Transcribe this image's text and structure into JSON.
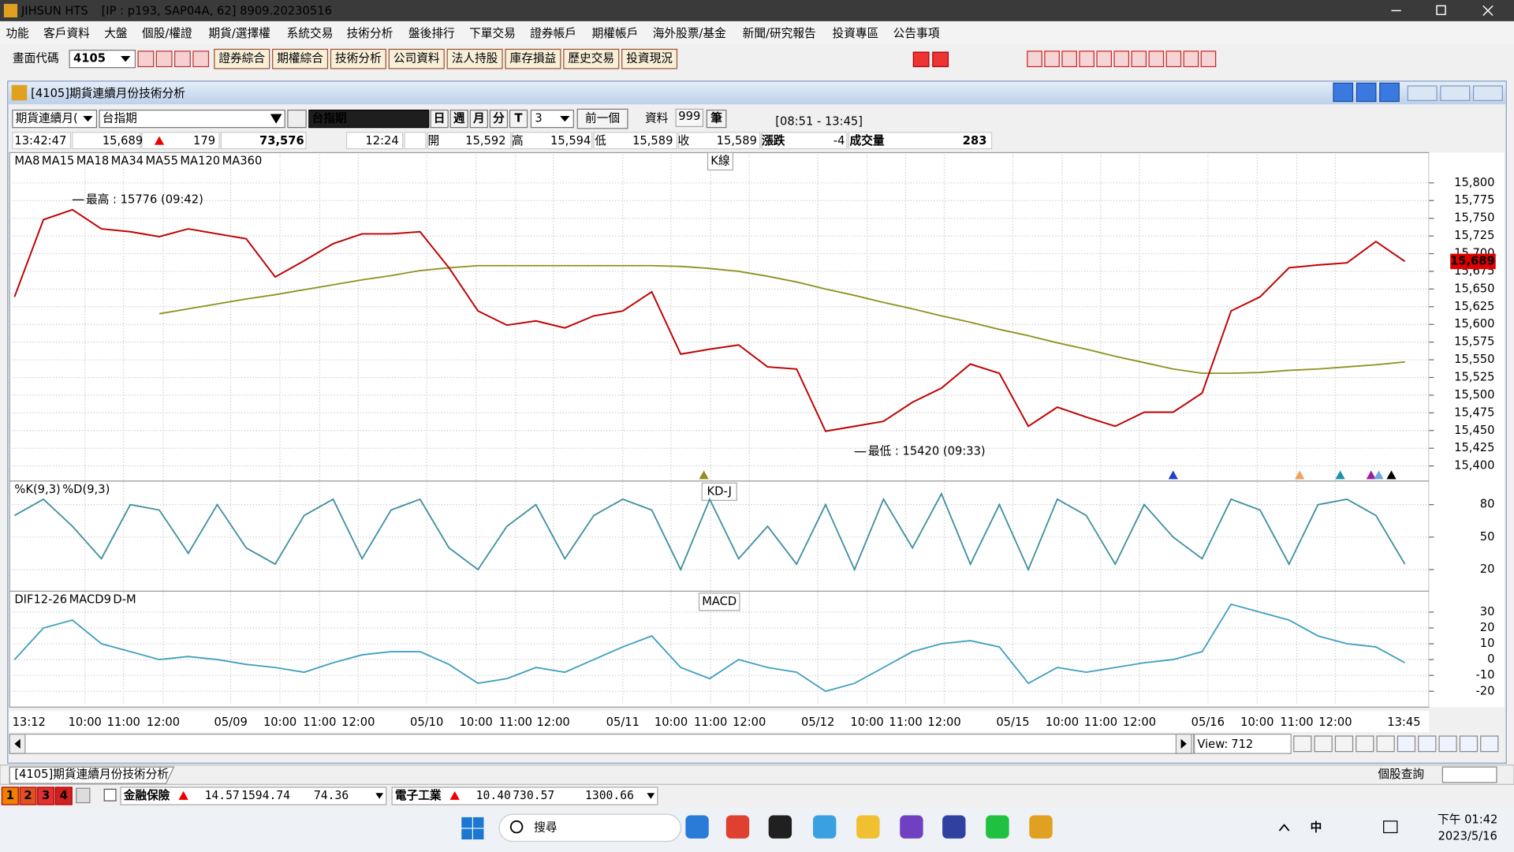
{
  "window": {
    "title": "JIHSUN HTS",
    "info": "[IP : p193, SAP04A, 62] 8909.20230516"
  },
  "menu": [
    "功能",
    "客戶資料",
    "大盤",
    "個股/權證",
    "期貨/選擇權",
    "系統交易",
    "技術分析",
    "盤後排行",
    "下單交易",
    "證券帳戶",
    "期權帳戶",
    "海外股票/基金",
    "新聞/研究報告",
    "投資專區",
    "公告事項"
  ],
  "toolbar": {
    "code_label": "畫面代碼",
    "code": "4105",
    "buttons": [
      "證券綜合",
      "期權綜合",
      "技術分析",
      "公司資料",
      "法人持股",
      "庫存損益",
      "歷史交易",
      "投資現況"
    ]
  },
  "panel": {
    "title": "[4105]期貨連續月份技術分析",
    "selector": "期貨連續月(",
    "symbol": "台指期",
    "symbol_field": "台指期",
    "periods": [
      "日",
      "週",
      "月",
      "分",
      "T"
    ],
    "interval": "3",
    "prev": "前一個",
    "data_label": "資料",
    "data_count": "999",
    "data_unit": "筆",
    "range": "[08:51 - 13:45]"
  },
  "quote": {
    "time": "13:42:47",
    "price": "15,689",
    "change": "179",
    "volume": "73,576",
    "last_time": "12:24",
    "open_label": "開",
    "open": "15,592",
    "high_label": "高",
    "high": "15,594",
    "low_label": "低",
    "low": "15,589",
    "close_label": "收",
    "close": "15,589",
    "diff_label": "漲跌",
    "diff": "-4",
    "vol_label": "成交量",
    "vol": "283"
  },
  "chart_data": [
    {
      "type": "line",
      "label": "K線",
      "color": "#c00000",
      "values": [
        15639,
        15748,
        15762,
        15735,
        15731,
        15724,
        15735,
        15728,
        15721,
        15667,
        15690,
        15714,
        15728,
        15728,
        15731,
        15680,
        15619,
        15599,
        15605,
        15595,
        15612,
        15619,
        15646,
        15558,
        15565,
        15571,
        15540,
        15537,
        15449,
        15456,
        15463,
        15490,
        15510,
        15544,
        15531,
        15456,
        15483,
        15469,
        15456,
        15476,
        15476,
        15503,
        15619,
        15639,
        15680,
        15684,
        15687,
        15717,
        15689
      ],
      "legend": [
        {
          "name": "MA8",
          "color": "#000000"
        },
        {
          "name": "MA15",
          "color": "#6fa8dc"
        },
        {
          "name": "MA18",
          "color": "#a020a0"
        },
        {
          "name": "MA34",
          "color": "#2090b0"
        },
        {
          "name": "MA55",
          "color": "#f0a060"
        },
        {
          "name": "MA120",
          "color": "#1010c0"
        }
      ],
      "series": [
        {
          "name": "MA360",
          "color": "#909020",
          "values": [
            null,
            null,
            null,
            null,
            null,
            15615,
            15622,
            15629,
            15636,
            15642,
            15649,
            15656,
            15663,
            15669,
            15676,
            15680,
            15683,
            15683,
            15683,
            15683,
            15683,
            15683,
            15683,
            15682,
            15679,
            15675,
            15668,
            15660,
            15650,
            15641,
            15631,
            15622,
            15612,
            15603,
            15593,
            15584,
            15574,
            15565,
            15555,
            15546,
            15537,
            15531,
            15531,
            15532,
            15535,
            15537,
            15540,
            15543,
            15547
          ]
        }
      ],
      "annotations": [
        {
          "text": "最高 : 15776 (09:42)",
          "x": 2,
          "y": 15776
        },
        {
          "text": "最低 : 15420 (09:33)",
          "x": 29,
          "y": 15420
        }
      ],
      "last": {
        "value": 15689,
        "label": "15,689"
      },
      "ylim": [
        15380,
        15840
      ],
      "yticks": [
        {
          "value": 15400,
          "label": "15,400"
        },
        {
          "value": 15425,
          "label": "15,425"
        },
        {
          "value": 15450,
          "label": "15,450"
        },
        {
          "value": 15475,
          "label": "15,475"
        },
        {
          "value": 15500,
          "label": "15,500"
        },
        {
          "value": 15525,
          "label": "15,525"
        },
        {
          "value": 15550,
          "label": "15,550"
        },
        {
          "value": 15575,
          "label": "15,575"
        },
        {
          "value": 15600,
          "label": "15,600"
        },
        {
          "value": 15625,
          "label": "15,625"
        },
        {
          "value": 15650,
          "label": "15,650"
        },
        {
          "value": 15675,
          "label": "15,675"
        },
        {
          "value": 15700,
          "label": "15,700"
        },
        {
          "value": 15725,
          "label": "15,725"
        },
        {
          "value": 15750,
          "label": "15,750"
        },
        {
          "value": 15775,
          "label": "15,775"
        },
        {
          "value": 15800,
          "label": "15,800"
        }
      ],
      "grid": true
    },
    {
      "type": "line",
      "label": "KD-J",
      "series": [
        {
          "name": "%K(9,3)",
          "color": "#4090a0",
          "values": [
            70,
            85,
            60,
            30,
            80,
            75,
            35,
            80,
            40,
            25,
            70,
            85,
            30,
            75,
            85,
            40,
            20,
            60,
            80,
            30,
            70,
            85,
            75,
            20,
            85,
            30,
            60,
            25,
            80,
            20,
            85,
            40,
            90,
            25,
            80,
            20,
            85,
            70,
            25,
            80,
            50,
            30,
            85,
            75,
            25,
            80,
            85,
            70,
            25
          ]
        }
      ],
      "legend": [
        {
          "name": "%D(9,3)",
          "color": "#e89040"
        }
      ],
      "ylim": [
        0,
        100
      ],
      "yticks": [
        20,
        50,
        80
      ],
      "grid": true
    },
    {
      "type": "line",
      "label": "MACD",
      "series": [
        {
          "name": "DIF12-26",
          "color": "#40a0c0",
          "values": [
            0,
            20,
            25,
            10,
            5,
            0,
            2,
            0,
            -3,
            -5,
            -8,
            -2,
            3,
            5,
            5,
            -3,
            -15,
            -12,
            -5,
            -8,
            0,
            8,
            15,
            -5,
            -12,
            0,
            -5,
            -8,
            -20,
            -15,
            -5,
            5,
            10,
            12,
            8,
            -15,
            -5,
            -8,
            -5,
            -2,
            0,
            5,
            35,
            30,
            25,
            15,
            10,
            8,
            -2
          ]
        }
      ],
      "legend": [
        {
          "name": "MACD9",
          "color": "#f0a040"
        },
        {
          "name": "D-M",
          "color": "#e040e0"
        }
      ],
      "ylim": [
        -30,
        42
      ],
      "yticks": [
        -20,
        -10,
        0,
        10,
        20,
        30
      ],
      "grid": true
    }
  ],
  "time_axis": [
    "13:12",
    "10:00",
    "11:00",
    "12:00",
    "05/09",
    "10:00",
    "11:00",
    "12:00",
    "05/10",
    "10:00",
    "11:00",
    "12:00",
    "05/11",
    "10:00",
    "11:00",
    "12:00",
    "05/12",
    "10:00",
    "11:00",
    "12:00",
    "05/15",
    "10:00",
    "11:00",
    "12:00",
    "05/16",
    "10:00",
    "11:00",
    "12:00",
    "13:45"
  ],
  "scroll": {
    "view_label": "View:",
    "view": "712"
  },
  "tab": "[4105]期貨連續月份技術分析",
  "search": "個股查詢",
  "ticker_tabs": [
    "1",
    "2",
    "3",
    "4"
  ],
  "ticker": [
    {
      "name": "金融保險",
      "change": "14.57",
      "index": "1594.74",
      "amount": "74.36"
    },
    {
      "name": "電子工業",
      "change": "10.40",
      "index": "730.57",
      "amount": "1300.66"
    }
  ],
  "taskbar": {
    "search": "搜尋",
    "ime": "中",
    "time": "下午 01:42",
    "date": "2023/5/16"
  }
}
